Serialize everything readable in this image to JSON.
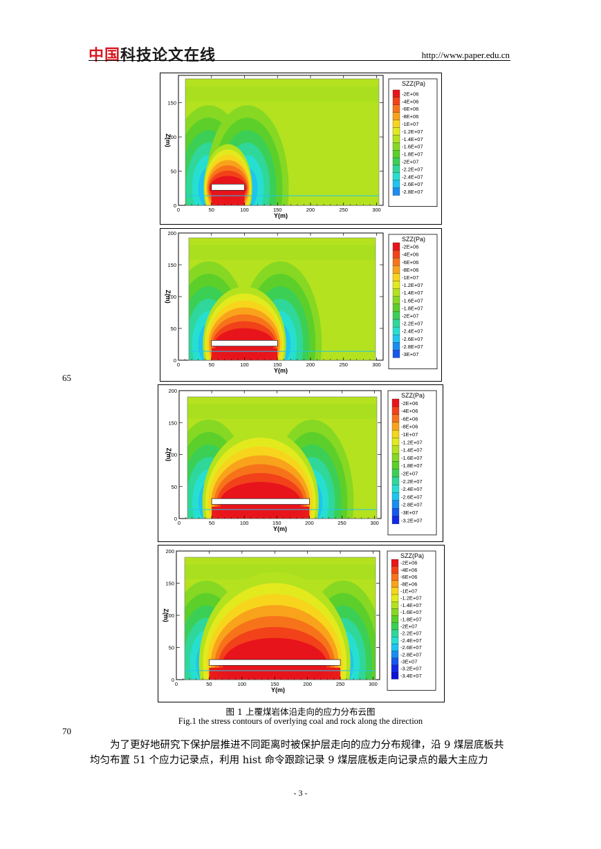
{
  "header": {
    "logo_part1": "中国",
    "logo_part2": "科技论文在线",
    "site_url": "http://www.paper.edu.cn"
  },
  "line_numbers": [
    "65",
    "70"
  ],
  "figures": [
    {
      "legend_title": "SZZ(Pa)",
      "legend_levels": [
        "-2E+06",
        "-4E+06",
        "-6E+06",
        "-8E+06",
        "-1E+07",
        "-1.2E+07",
        "-1.4E+07",
        "-1.6E+07",
        "-1.8E+07",
        "-2E+07",
        "-2.2E+07",
        "-2.4E+07",
        "-2.6E+07",
        "-2.8E+07"
      ],
      "x_ticks": [
        "0",
        "50",
        "100",
        "150",
        "200",
        "250",
        "300"
      ],
      "y_ticks": [
        "0",
        "50",
        "100",
        "150"
      ],
      "xlabel": "Y(m)",
      "ylabel": "Z(m)"
    },
    {
      "legend_title": "SZZ(Pa)",
      "legend_levels": [
        "-2E+06",
        "-4E+06",
        "-6E+06",
        "-8E+06",
        "-1E+07",
        "-1.2E+07",
        "-1.4E+07",
        "-1.6E+07",
        "-1.8E+07",
        "-2E+07",
        "-2.2E+07",
        "-2.4E+07",
        "-2.6E+07",
        "-2.8E+07",
        "-3E+07"
      ],
      "x_ticks": [
        "0",
        "50",
        "100",
        "150",
        "200",
        "250",
        "300"
      ],
      "y_ticks": [
        "0",
        "50",
        "100",
        "150",
        "200"
      ],
      "xlabel": "Y(m)",
      "ylabel": "Z(m)"
    },
    {
      "legend_title": "SZZ(Pa)",
      "legend_levels": [
        "-2E+06",
        "-4E+06",
        "-6E+06",
        "-8E+06",
        "-1E+07",
        "-1.2E+07",
        "-1.4E+07",
        "-1.6E+07",
        "-1.8E+07",
        "-2E+07",
        "-2.2E+07",
        "-2.4E+07",
        "-2.6E+07",
        "-2.8E+07",
        "-3E+07",
        "-3.2E+07"
      ],
      "x_ticks": [
        "0",
        "50",
        "100",
        "150",
        "200",
        "250",
        "300"
      ],
      "y_ticks": [
        "0",
        "50",
        "100",
        "150",
        "200"
      ],
      "xlabel": "Y(m)",
      "ylabel": "Z(m)"
    },
    {
      "legend_title": "SZZ(Pa)",
      "legend_levels": [
        "-2E+06",
        "-4E+06",
        "-6E+06",
        "-8E+06",
        "-1E+07",
        "-1.2E+07",
        "-1.4E+07",
        "-1.6E+07",
        "-1.8E+07",
        "-2E+07",
        "-2.2E+07",
        "-2.4E+07",
        "-2.6E+07",
        "-2.8E+07",
        "-3E+07",
        "-3.2E+07",
        "-3.4E+07"
      ],
      "x_ticks": [
        "0",
        "50",
        "100",
        "150",
        "200",
        "250",
        "300"
      ],
      "y_ticks": [
        "0",
        "50",
        "100",
        "150",
        "200"
      ],
      "xlabel": "Y(m)",
      "ylabel": "Z(m)"
    }
  ],
  "caption_cn": "图 1 上覆煤岩体沿走向的应力分布云图",
  "caption_en": "Fig.1 the stress contours of overlying coal and rock along the direction",
  "paragraph": "为了更好地研究下保护层推进不同距离时被保护层走向的应力分布规律，沿 9 煤层底板共均匀布置 51 个应力记录点，利用 hist 命令跟踪记录 9 煤层底板走向记录点的最大主应力",
  "page_number": "- 3 -",
  "colors": {
    "logo_red": "#d71920",
    "palette": [
      "#e8141b",
      "#f2421a",
      "#f7731a",
      "#f8a31b",
      "#f7d51c",
      "#e2ea1e",
      "#b4e21f",
      "#86d823",
      "#5ccf2a",
      "#3ccf55",
      "#2fd79a",
      "#27dfd0",
      "#1fc4ef",
      "#1a8ef0",
      "#1658ee",
      "#1329e8",
      "#0f10d6"
    ]
  }
}
